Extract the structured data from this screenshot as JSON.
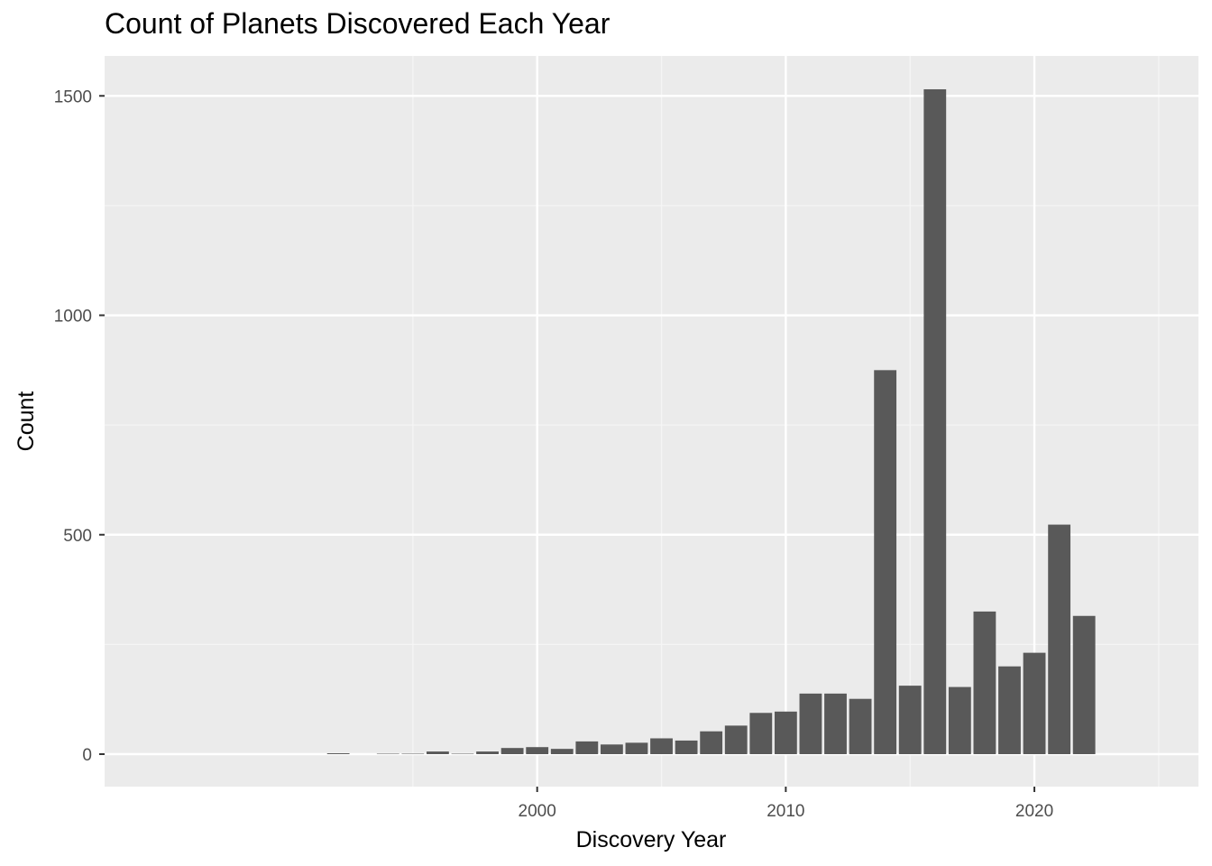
{
  "chart_data": {
    "type": "bar",
    "title": "Count of Planets Discovered Each Year",
    "xlabel": "Discovery Year",
    "ylabel": "Count",
    "x": [
      1992,
      1994,
      1995,
      1996,
      1997,
      1998,
      1999,
      2000,
      2001,
      2002,
      2003,
      2004,
      2005,
      2006,
      2007,
      2008,
      2009,
      2010,
      2011,
      2012,
      2013,
      2014,
      2015,
      2016,
      2017,
      2018,
      2019,
      2020,
      2021,
      2022
    ],
    "values": [
      2,
      1,
      1,
      6,
      1,
      6,
      14,
      16,
      12,
      29,
      22,
      26,
      36,
      31,
      52,
      65,
      94,
      97,
      138,
      138,
      126,
      875,
      156,
      1515,
      153,
      325,
      200,
      231,
      523,
      315
    ],
    "xlim": [
      1982.6,
      2026.6
    ],
    "ylim": [
      -74,
      1591
    ],
    "xticks": [
      2000,
      2010,
      2020
    ],
    "yticks": [
      0,
      500,
      1000,
      1500
    ],
    "grid": true,
    "legend": "none",
    "colors": {
      "bar": "#595959",
      "panel": "#ebebeb",
      "grid_major": "#ffffff",
      "grid_minor": "#f5f5f5",
      "tick_label": "#4d4d4d"
    }
  }
}
